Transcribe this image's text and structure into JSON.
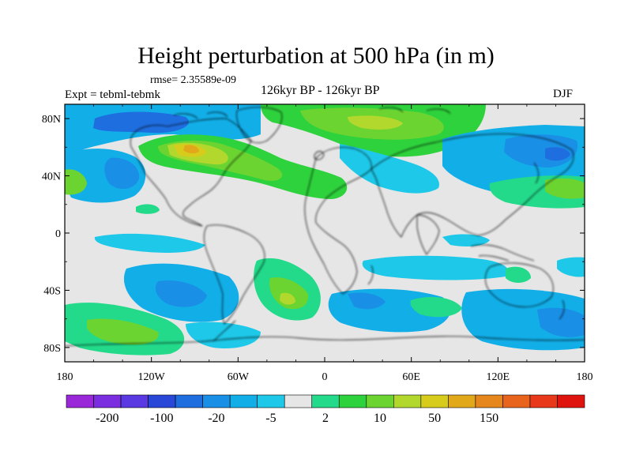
{
  "chart_data": {
    "type": "contour-map",
    "title": "Height perturbation at 500 hPa (in m)",
    "rmse": "rmse= 2.35589e-09",
    "experiment": "Expt = tebml-tebmk",
    "period": "126kyr BP - 126kyr BP",
    "season": "DJF",
    "x_ticks": [
      "180",
      "120W",
      "60W",
      "0",
      "60E",
      "120E",
      "180"
    ],
    "y_ticks": [
      "80N",
      "40N",
      "0",
      "40S",
      "80S"
    ],
    "lon_range": [
      -180,
      180
    ],
    "lat_range": [
      -90,
      90
    ],
    "colorbar": {
      "labels": [
        "-200",
        "-100",
        "-20",
        "-5",
        "2",
        "10",
        "50",
        "150"
      ],
      "colors": [
        "#9a28d8",
        "#7a2ee0",
        "#5a38e2",
        "#2a48d8",
        "#1f6ee0",
        "#1a8fe6",
        "#12aee8",
        "#1ec8e8",
        "#e6e6e6",
        "#23d98a",
        "#2ed23c",
        "#6cd431",
        "#b3d82d",
        "#d7cc1c",
        "#e1a81a",
        "#e5871c",
        "#e8641c",
        "#e83a1a",
        "#e0140e"
      ]
    },
    "field_regions": [
      {
        "name": "pos-north-america",
        "level": "positive-high"
      },
      {
        "name": "pos-north-atlantic",
        "level": "positive-medium"
      },
      {
        "name": "pos-arctic-eurasia",
        "level": "positive-medium"
      },
      {
        "name": "pos-south-atlantic",
        "level": "positive-medium"
      },
      {
        "name": "pos-southeast-pacific",
        "level": "positive-medium"
      },
      {
        "name": "neg-north-pacific",
        "level": "negative-low"
      },
      {
        "name": "neg-southern-ocean",
        "level": "negative-low"
      },
      {
        "name": "neg-east-asia",
        "level": "negative-medium"
      }
    ]
  }
}
